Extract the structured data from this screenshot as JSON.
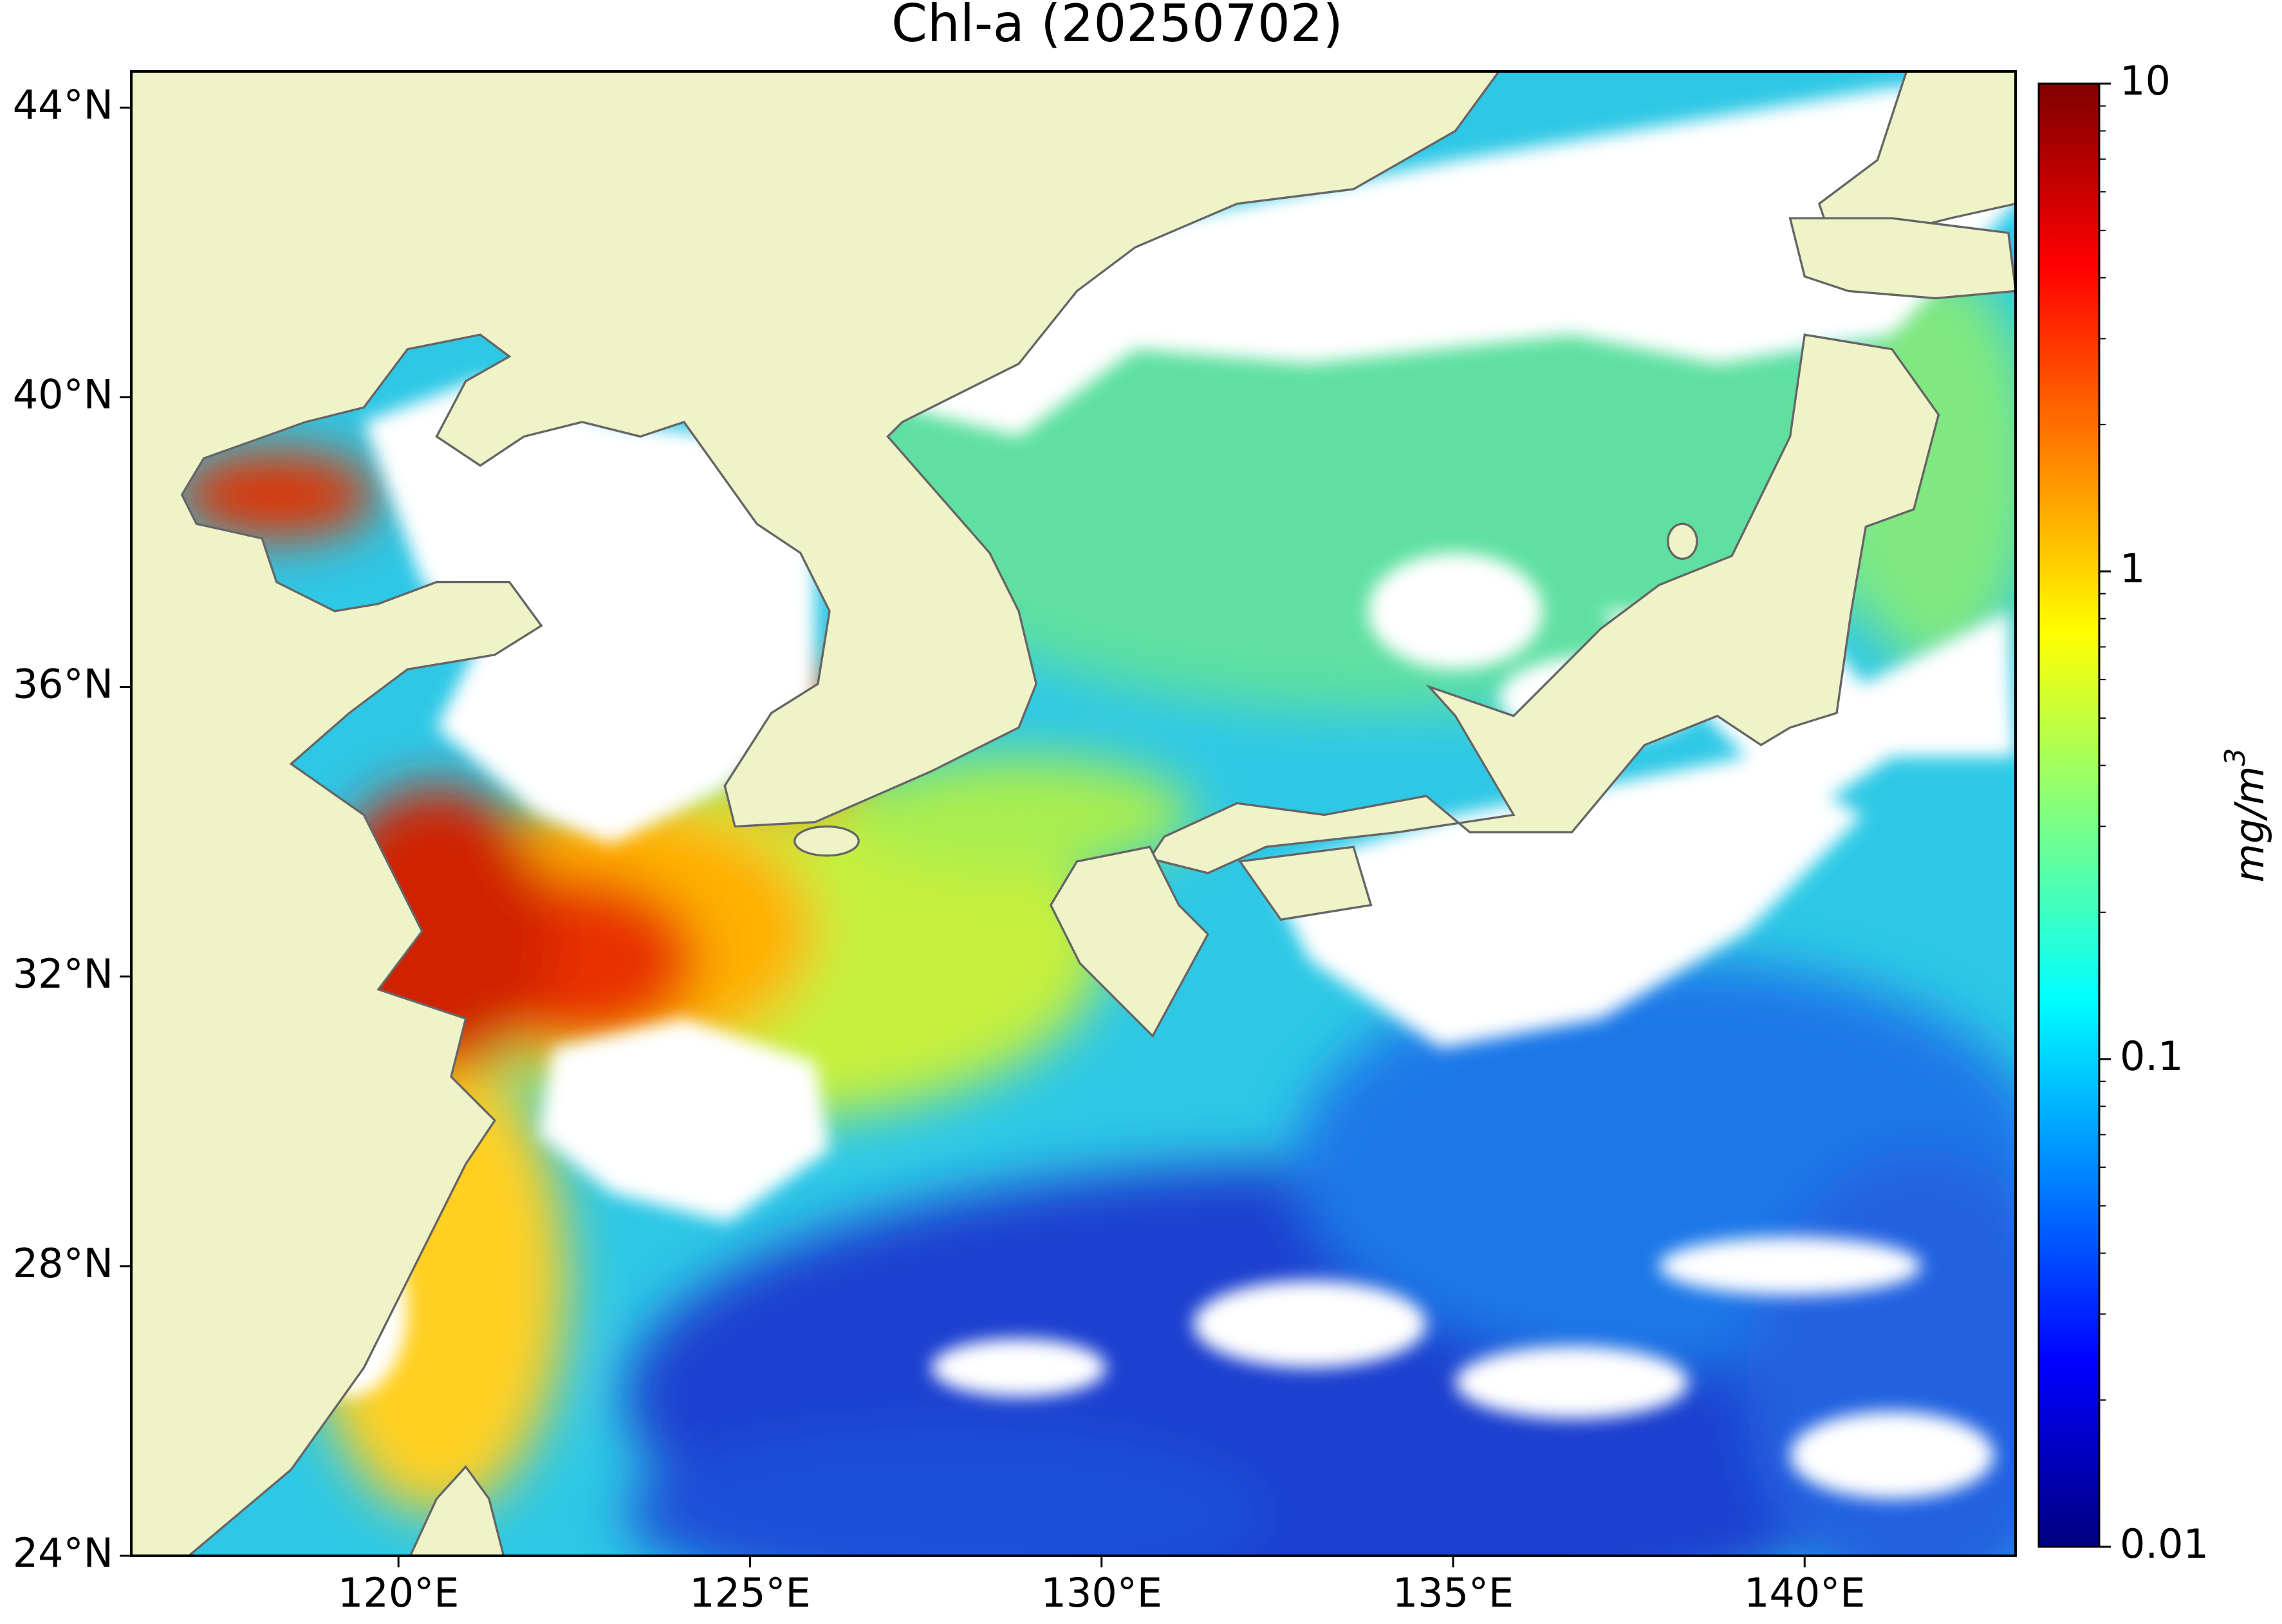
{
  "chart_data": {
    "type": "map",
    "title": "Chl-a (20250702)",
    "xlim": [
      116.2,
      143.0
    ],
    "ylim": [
      24,
      44.5
    ],
    "xticks": [
      {
        "value": 120,
        "label": "120°E"
      },
      {
        "value": 125,
        "label": "125°E"
      },
      {
        "value": 130,
        "label": "130°E"
      },
      {
        "value": 135,
        "label": "135°E"
      },
      {
        "value": 140,
        "label": "140°E"
      }
    ],
    "yticks": [
      {
        "value": 24,
        "label": "24°N"
      },
      {
        "value": 28,
        "label": "28°N"
      },
      {
        "value": 32,
        "label": "32°N"
      },
      {
        "value": 36,
        "label": "36°N"
      },
      {
        "value": 40,
        "label": "40°N"
      },
      {
        "value": 44,
        "label": "44°N"
      }
    ],
    "colorbar": {
      "label": {
        "base": "mg/m",
        "exponent": "3"
      },
      "colormap": "jet",
      "log_scale": true,
      "lim": [
        0.01,
        10
      ],
      "ticks": [
        0.01,
        0.1,
        1,
        10
      ]
    }
  }
}
